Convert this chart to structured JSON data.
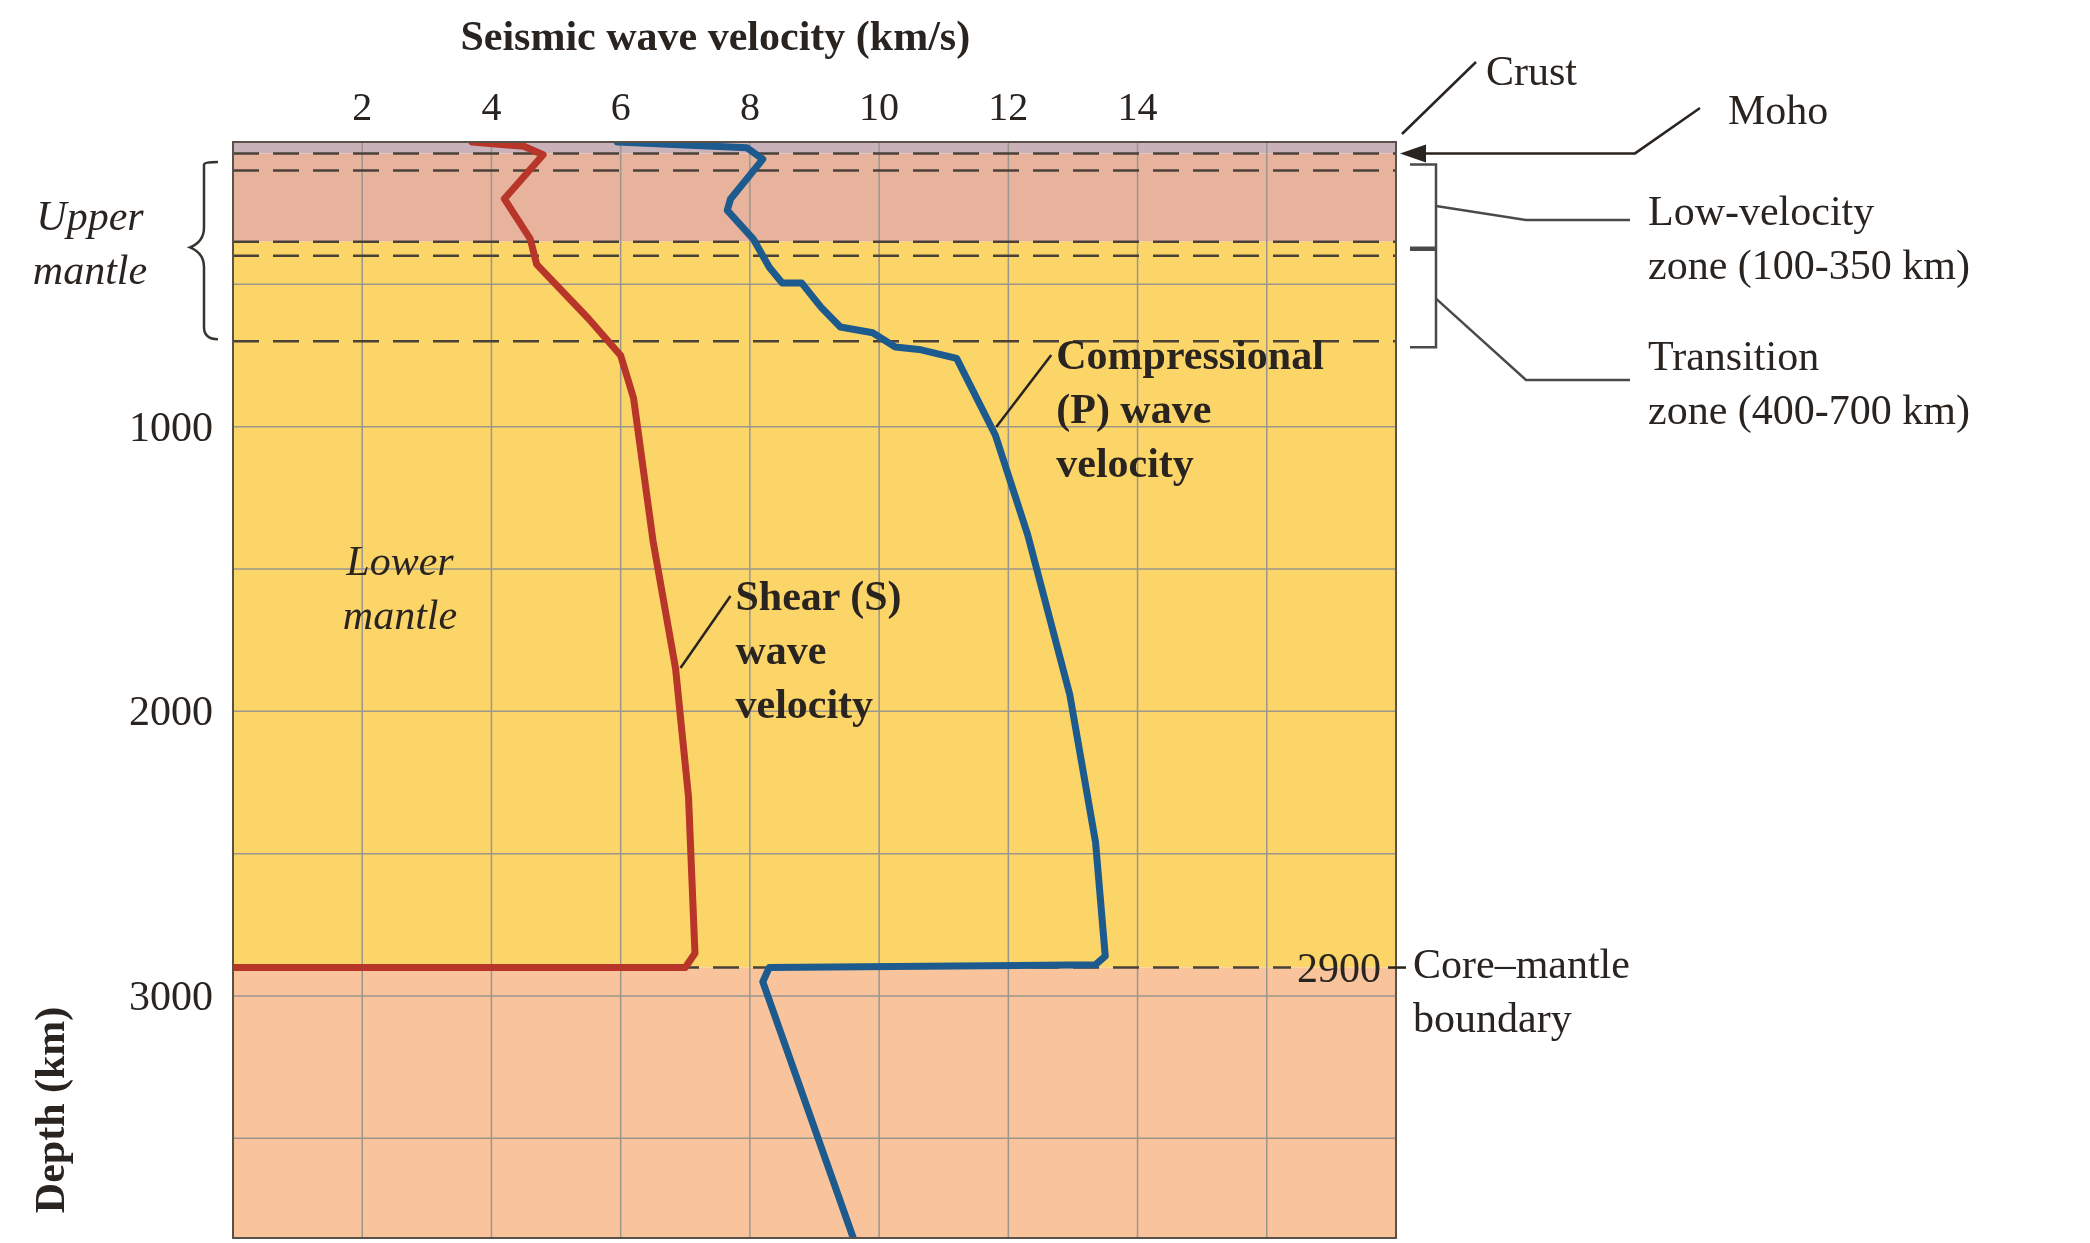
{
  "chart_data": {
    "type": "line",
    "xlabel": "Seismic wave velocity (km/s)",
    "ylabel": "Depth (km)",
    "xlim": [
      0,
      18
    ],
    "xticks": [
      2,
      4,
      6,
      8,
      10,
      12,
      14,
      {
        "value": 16,
        "label": null
      }
    ],
    "ylim": [
      3850,
      0
    ],
    "yticks": [
      {
        "value": 500,
        "label": null
      },
      1000,
      {
        "value": 1500,
        "label": null
      },
      2000,
      {
        "value": 2500,
        "label": null
      },
      3000,
      {
        "value": 3500,
        "label": null
      }
    ],
    "grid": true,
    "series": [
      {
        "name": "Shear (S) wave velocity",
        "color": "#b8352a",
        "x": [
          3.7,
          4.5,
          4.8,
          4.2,
          4.4,
          4.6,
          4.7,
          5.5,
          6.0,
          6.2,
          6.5,
          6.85,
          7.05,
          7.15,
          7.0,
          0
        ],
        "values": [
          0,
          15,
          45,
          200,
          270,
          340,
          430,
          620,
          750,
          900,
          1400,
          1850,
          2300,
          2850,
          2900,
          2900
        ]
      },
      {
        "name": "Compressional (P) wave velocity",
        "color": "#1d5b8e",
        "x": [
          5.95,
          7.95,
          8.2,
          7.7,
          7.65,
          8.05,
          8.3,
          8.5,
          8.8,
          9.1,
          9.4,
          9.9,
          10.25,
          10.65,
          11.2,
          11.8,
          12.3,
          12.95,
          13.35,
          13.5,
          13.35,
          8.3,
          8.2,
          9.6
        ],
        "values": [
          0,
          20,
          60,
          200,
          240,
          340,
          440,
          495,
          495,
          580,
          650,
          670,
          720,
          730,
          760,
          1030,
          1380,
          1940,
          2460,
          2860,
          2890,
          2900,
          2950,
          3850
        ]
      }
    ],
    "bands": [
      {
        "axis": "y",
        "from": 0,
        "to": 40,
        "label": "Crust",
        "color": "#c9b1b9"
      },
      {
        "axis": "y",
        "from": 40,
        "to": 350,
        "color": "#e8b39c"
      },
      {
        "axis": "y",
        "from": 350,
        "to": 2900,
        "color": "#fcd568"
      },
      {
        "axis": "y",
        "from": 2900,
        "to": 3850,
        "color": "#f9c49c"
      }
    ],
    "ref_lines": [
      {
        "axis": "y",
        "value": 40,
        "label": "Moho",
        "line_style": "dashed"
      },
      {
        "axis": "y",
        "value": 100,
        "line_style": "dashed"
      },
      {
        "axis": "y",
        "value": 350,
        "line_style": "dashed"
      },
      {
        "axis": "y",
        "value": 400,
        "line_style": "dashed"
      },
      {
        "axis": "y",
        "value": 700,
        "line_style": "dashed"
      },
      {
        "axis": "y",
        "value": 2900,
        "label": "2900",
        "line_style": "dashed"
      }
    ],
    "annotations": [
      "Upper mantle",
      "Lower mantle",
      "Core–mantle boundary",
      "Low-velocity zone (100-350 km)",
      "Transition zone (400-700 km)"
    ]
  }
}
